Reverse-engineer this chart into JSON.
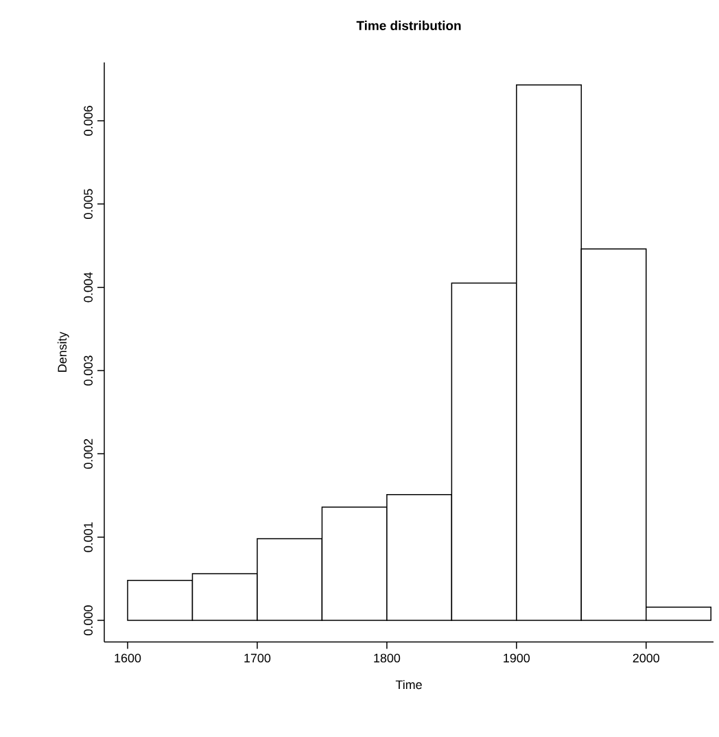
{
  "chart_data": {
    "type": "histogram",
    "title": "Time distribution",
    "xlabel": "Time",
    "ylabel": "Density",
    "bins": [
      1600,
      1650,
      1700,
      1750,
      1800,
      1850,
      1900,
      1950,
      2000,
      2050
    ],
    "values": [
      0.00048,
      0.00056,
      0.00098,
      0.00136,
      0.00151,
      0.00405,
      0.00643,
      0.00446,
      0.00016
    ],
    "color": "#ffffff",
    "xlim": [
      1582,
      2052
    ],
    "ylim": [
      -0.00026,
      0.0067
    ],
    "xticks": [
      1600,
      1700,
      1800,
      1900,
      2000
    ],
    "yticks": [
      {
        "value": 0,
        "label": "0.000"
      },
      {
        "value": 0.001,
        "label": "0.001"
      },
      {
        "value": 0.002,
        "label": "0.002"
      },
      {
        "value": 0.003,
        "label": "0.003"
      },
      {
        "value": 0.004,
        "label": "0.004"
      },
      {
        "value": 0.005,
        "label": "0.005"
      },
      {
        "value": 0.006,
        "label": "0.006"
      }
    ]
  }
}
